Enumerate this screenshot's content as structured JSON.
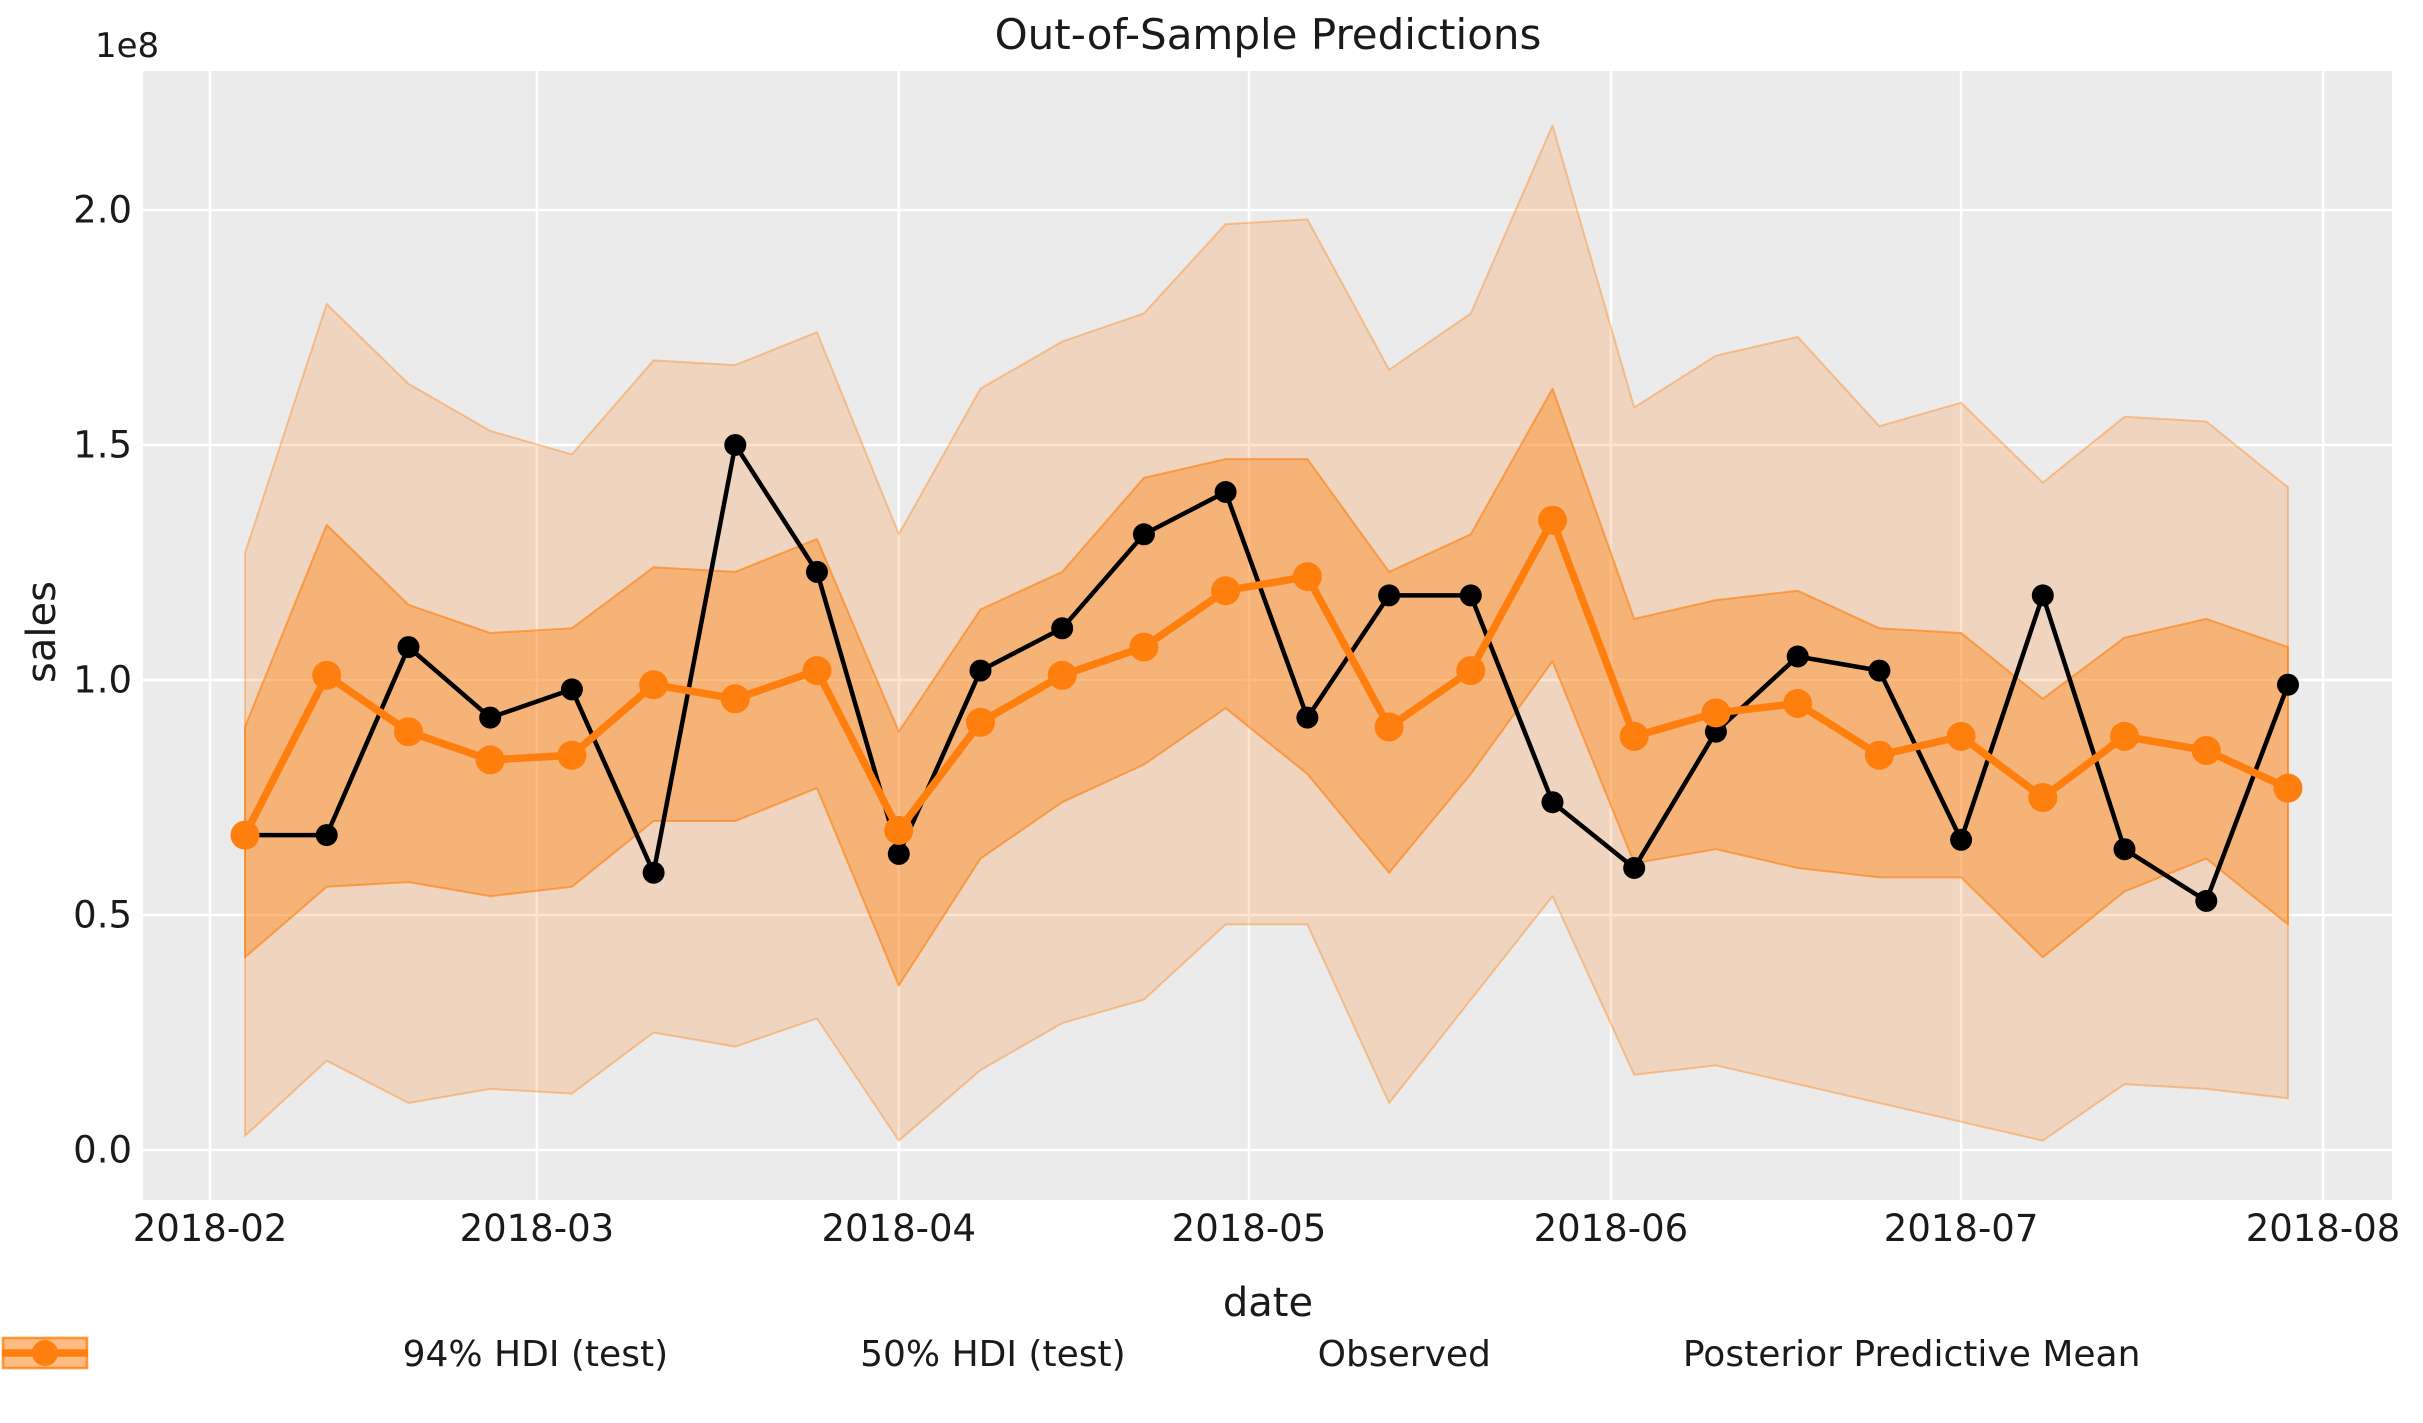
{
  "figure": {
    "title": "Out-of-Sample Predictions",
    "y_offset_label": "1e8",
    "xlabel": "date",
    "ylabel": "sales"
  },
  "chart_data": {
    "type": "line",
    "title": "Out-of-Sample Predictions",
    "xlabel": "date",
    "ylabel": "sales",
    "y_offset_label": "1e8",
    "y_units": "1e8",
    "grid": true,
    "plot_background": "#ebebeb",
    "gridline_color": "#ffffff",
    "accent_color": "#ff7f0e",
    "observed_color": "#000000",
    "ylim": [
      -0.106,
      2.296
    ],
    "xlim": [
      "2018-01-26",
      "2018-08-07"
    ],
    "x": [
      "2018-02-04",
      "2018-02-11",
      "2018-02-18",
      "2018-02-25",
      "2018-03-04",
      "2018-03-11",
      "2018-03-18",
      "2018-03-25",
      "2018-04-01",
      "2018-04-08",
      "2018-04-15",
      "2018-04-22",
      "2018-04-29",
      "2018-05-06",
      "2018-05-13",
      "2018-05-20",
      "2018-05-27",
      "2018-06-03",
      "2018-06-10",
      "2018-06-17",
      "2018-06-24",
      "2018-07-01",
      "2018-07-08",
      "2018-07-15",
      "2018-07-22",
      "2018-07-29"
    ],
    "series": [
      {
        "name": "94% HDI (test)",
        "kind": "band",
        "color": "#ff7f0e",
        "fill_alpha": 0.2,
        "edge_alpha": 0.38,
        "lower": [
          0.03,
          0.19,
          0.1,
          0.13,
          0.12,
          0.25,
          0.22,
          0.28,
          0.02,
          0.17,
          0.27,
          0.32,
          0.48,
          0.48,
          0.1,
          0.32,
          0.54,
          0.16,
          0.18,
          0.14,
          0.1,
          0.06,
          0.02,
          0.14,
          0.13,
          0.11
        ],
        "upper": [
          1.27,
          1.8,
          1.63,
          1.53,
          1.48,
          1.68,
          1.67,
          1.74,
          1.31,
          1.62,
          1.72,
          1.78,
          1.97,
          1.98,
          1.66,
          1.78,
          2.18,
          1.58,
          1.69,
          1.73,
          1.54,
          1.59,
          1.42,
          1.56,
          1.55,
          1.41
        ]
      },
      {
        "name": "50% HDI (test)",
        "kind": "band",
        "color": "#ff7f0e",
        "fill_alpha": 0.4,
        "edge_alpha": 0.62,
        "lower": [
          0.41,
          0.56,
          0.57,
          0.54,
          0.56,
          0.7,
          0.7,
          0.77,
          0.35,
          0.62,
          0.74,
          0.82,
          0.94,
          0.8,
          0.59,
          0.8,
          1.04,
          0.61,
          0.64,
          0.6,
          0.58,
          0.58,
          0.41,
          0.55,
          0.62,
          0.48
        ],
        "upper": [
          0.9,
          1.33,
          1.16,
          1.1,
          1.11,
          1.24,
          1.23,
          1.3,
          0.89,
          1.15,
          1.23,
          1.43,
          1.47,
          1.47,
          1.23,
          1.31,
          1.62,
          1.13,
          1.17,
          1.19,
          1.11,
          1.1,
          0.96,
          1.09,
          1.13,
          1.07
        ]
      },
      {
        "name": "Observed",
        "kind": "line",
        "color": "#000000",
        "line_width": 4.5,
        "marker_radius": 11,
        "values": [
          0.67,
          0.67,
          1.07,
          0.92,
          0.98,
          0.59,
          1.5,
          1.23,
          0.63,
          1.02,
          1.11,
          1.31,
          1.4,
          0.92,
          1.18,
          1.18,
          0.74,
          0.6,
          0.89,
          1.05,
          1.02,
          0.66,
          1.18,
          0.64,
          0.53,
          0.99
        ]
      },
      {
        "name": "Posterior Predictive Mean",
        "kind": "line",
        "color": "#ff7f0e",
        "line_width": 7.5,
        "marker_radius": 14.5,
        "values": [
          0.67,
          1.01,
          0.89,
          0.83,
          0.84,
          0.99,
          0.96,
          1.02,
          0.68,
          0.91,
          1.01,
          1.07,
          1.19,
          1.22,
          0.9,
          1.02,
          1.34,
          0.88,
          0.93,
          0.95,
          0.84,
          0.88,
          0.75,
          0.88,
          0.85,
          0.77
        ]
      }
    ],
    "xticks": [
      {
        "label": "2018-02",
        "date": "2018-02-01"
      },
      {
        "label": "2018-03",
        "date": "2018-03-01"
      },
      {
        "label": "2018-04",
        "date": "2018-04-01"
      },
      {
        "label": "2018-05",
        "date": "2018-05-01"
      },
      {
        "label": "2018-06",
        "date": "2018-06-01"
      },
      {
        "label": "2018-07",
        "date": "2018-07-01"
      },
      {
        "label": "2018-08",
        "date": "2018-08-01"
      }
    ],
    "yticks": [
      {
        "label": "0.0",
        "value": 0.0
      },
      {
        "label": "0.5",
        "value": 0.5
      },
      {
        "label": "1.0",
        "value": 1.0
      },
      {
        "label": "1.5",
        "value": 1.5
      },
      {
        "label": "2.0",
        "value": 2.0
      }
    ],
    "legend": [
      {
        "label": "94% HDI (test)",
        "swatch": "band",
        "color": "#ff7f0e",
        "fill_alpha": 0.2,
        "edge_alpha": 0.4
      },
      {
        "label": "50% HDI (test)",
        "swatch": "band",
        "color": "#ff7f0e",
        "fill_alpha": 0.4,
        "edge_alpha": 0.65
      },
      {
        "label": "Observed",
        "swatch": "line-marker",
        "color": "#000000"
      },
      {
        "label": "Posterior Predictive Mean",
        "swatch": "line-marker",
        "color": "#ff7f0e"
      }
    ],
    "legend_position": "bottom"
  }
}
